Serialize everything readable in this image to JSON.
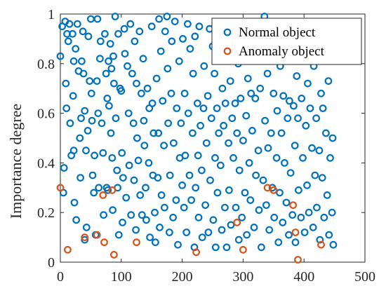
{
  "chart_data": {
    "type": "scatter",
    "title": "",
    "xlabel": "",
    "ylabel": "Importance degree",
    "xlim": [
      0,
      500
    ],
    "ylim": [
      0,
      1
    ],
    "xticks": [
      "0",
      "100",
      "200",
      "300",
      "400",
      "500"
    ],
    "yticks": [
      "0",
      "0.2",
      "0.4",
      "0.6",
      "0.8",
      "1"
    ],
    "grid": false,
    "legend_position": "top-right",
    "series": [
      {
        "name": "Normal object",
        "color": "#0072BD",
        "marker": "open-circle",
        "points": [
          [
            0,
            0.83
          ],
          [
            3,
            0.95
          ],
          [
            5,
            0.28
          ],
          [
            6,
            0.38
          ],
          [
            8,
            0.97
          ],
          [
            9,
            0.72
          ],
          [
            10,
            0.62
          ],
          [
            11,
            0.92
          ],
          [
            13,
            0.89
          ],
          [
            15,
            0.96
          ],
          [
            16,
            0.56
          ],
          [
            18,
            0.43
          ],
          [
            20,
            0.92
          ],
          [
            21,
            0.67
          ],
          [
            22,
            0.81
          ],
          [
            22,
            0.45
          ],
          [
            23,
            0.24
          ],
          [
            25,
            0.86
          ],
          [
            26,
            0.17
          ],
          [
            28,
            0.96
          ],
          [
            30,
            0.77
          ],
          [
            32,
            0.5
          ],
          [
            33,
            0.34
          ],
          [
            34,
            0.58
          ],
          [
            35,
            0.81
          ],
          [
            37,
            0.93
          ],
          [
            38,
            0.76
          ],
          [
            40,
            0.61
          ],
          [
            40,
            0.09
          ],
          [
            42,
            0.45
          ],
          [
            43,
            0.14
          ],
          [
            45,
            0.53
          ],
          [
            46,
            0.91
          ],
          [
            48,
            0.73
          ],
          [
            50,
            0.98
          ],
          [
            51,
            0.68
          ],
          [
            52,
            0.57
          ],
          [
            53,
            0.35
          ],
          [
            55,
            0.28
          ],
          [
            56,
            0.43
          ],
          [
            58,
            0.11
          ],
          [
            60,
            0.73
          ],
          [
            61,
            0.98
          ],
          [
            62,
            0.6
          ],
          [
            63,
            0.3
          ],
          [
            65,
            0.82
          ],
          [
            66,
            0.89
          ],
          [
            68,
            0.56
          ],
          [
            70,
            0.44
          ],
          [
            71,
            0.19
          ],
          [
            73,
            0.92
          ],
          [
            75,
            0.76
          ],
          [
            76,
            0.3
          ],
          [
            77,
            0.66
          ],
          [
            78,
            0.29
          ],
          [
            79,
            0.81
          ],
          [
            80,
            0.63
          ],
          [
            82,
            0.88
          ],
          [
            83,
            0.52
          ],
          [
            84,
            0.78
          ],
          [
            85,
            0.42
          ],
          [
            86,
            0.21
          ],
          [
            87,
            0.83
          ],
          [
            88,
            0.72
          ],
          [
            90,
            0.99
          ],
          [
            91,
            0.58
          ],
          [
            93,
            0.37
          ],
          [
            94,
            0.3
          ],
          [
            95,
            0.92
          ],
          [
            96,
            0.11
          ],
          [
            98,
            0.7
          ],
          [
            100,
            0.69
          ],
          [
            101,
            0.44
          ],
          [
            102,
            0.16
          ],
          [
            103,
            0.34
          ],
          [
            105,
            0.94
          ],
          [
            106,
            0.84
          ],
          [
            108,
            0.26
          ],
          [
            110,
            0.79
          ],
          [
            112,
            0.6
          ],
          [
            113,
            0.39
          ],
          [
            115,
            0.96
          ],
          [
            116,
            0.19
          ],
          [
            118,
            0.76
          ],
          [
            120,
            0.56
          ],
          [
            121,
            0.33
          ],
          [
            122,
            0.89
          ],
          [
            124,
            0.13
          ],
          [
            125,
            0.72
          ],
          [
            126,
            0.5
          ],
          [
            128,
            0.41
          ],
          [
            130,
            0.93
          ],
          [
            131,
            0.27
          ],
          [
            133,
            0.68
          ],
          [
            134,
            0.19
          ],
          [
            136,
            0.82
          ],
          [
            137,
            0.57
          ],
          [
            138,
            0.47
          ],
          [
            140,
            0.3
          ],
          [
            141,
            0.17
          ],
          [
            143,
            0.7
          ],
          [
            145,
            0.4
          ],
          [
            146,
            0.62
          ],
          [
            147,
            0.1
          ],
          [
            150,
            0.95
          ],
          [
            151,
            0.64
          ],
          [
            152,
            0.35
          ],
          [
            153,
            0.52
          ],
          [
            155,
            0.2
          ],
          [
            156,
            0.08
          ],
          [
            158,
            0.74
          ],
          [
            160,
            0.34
          ],
          [
            161,
            0.52
          ],
          [
            162,
            0.98
          ],
          [
            163,
            0.14
          ],
          [
            165,
            0.85
          ],
          [
            166,
            0.27
          ],
          [
            168,
            0.65
          ],
          [
            170,
            0.47
          ],
          [
            171,
            0.22
          ],
          [
            172,
            0.93
          ],
          [
            175,
            0.99
          ],
          [
            176,
            0.78
          ],
          [
            177,
            0.56
          ],
          [
            179,
            0.12
          ],
          [
            180,
            0.35
          ],
          [
            182,
            0.68
          ],
          [
            183,
            0.89
          ],
          [
            185,
            0.18
          ],
          [
            186,
            0.48
          ],
          [
            188,
            0.97
          ],
          [
            190,
            0.25
          ],
          [
            191,
            0.62
          ],
          [
            193,
            0.07
          ],
          [
            195,
            0.81
          ],
          [
            196,
            0.42
          ],
          [
            198,
            0.56
          ],
          [
            200,
            0.31
          ],
          [
            201,
            0.9
          ],
          [
            203,
            0.22
          ],
          [
            204,
            0.68
          ],
          [
            205,
            0.43
          ],
          [
            207,
            0.12
          ],
          [
            209,
            0.96
          ],
          [
            210,
            0.6
          ],
          [
            212,
            0.35
          ],
          [
            213,
            0.86
          ],
          [
            215,
            0.25
          ],
          [
            217,
            0.52
          ],
          [
            218,
            0.76
          ],
          [
            220,
            0.06
          ],
          [
            221,
            0.91
          ],
          [
            222,
            0.3
          ],
          [
            225,
            0.64
          ],
          [
            226,
            0.43
          ],
          [
            227,
            0.18
          ],
          [
            228,
            0.95
          ],
          [
            230,
            0.55
          ],
          [
            232,
            0.37
          ],
          [
            233,
            0.1
          ],
          [
            235,
            0.62
          ],
          [
            236,
            0.79
          ],
          [
            238,
            0.23
          ],
          [
            240,
            0.48
          ],
          [
            242,
            0.67
          ],
          [
            243,
            0.12
          ],
          [
            245,
            0.94
          ],
          [
            246,
            0.33
          ],
          [
            248,
            0.58
          ],
          [
            250,
            0.87
          ],
          [
            251,
            0.17
          ],
          [
            253,
            0.76
          ],
          [
            254,
            0.42
          ],
          [
            255,
            0.06
          ],
          [
            257,
            0.62
          ],
          [
            258,
            0.28
          ],
          [
            260,
            0.52
          ],
          [
            262,
            0.91
          ],
          [
            263,
            0.39
          ],
          [
            265,
            0.13
          ],
          [
            266,
            0.7
          ],
          [
            268,
            0.55
          ],
          [
            270,
            0.22
          ],
          [
            271,
            0.64
          ],
          [
            273,
            0.06
          ],
          [
            274,
            0.87
          ],
          [
            276,
            0.48
          ],
          [
            277,
            0.29
          ],
          [
            279,
            0.73
          ],
          [
            280,
            0.15
          ],
          [
            282,
            0.58
          ],
          [
            284,
            0.42
          ],
          [
            285,
            0.96
          ],
          [
            287,
            0.64
          ],
          [
            288,
            0.22
          ],
          [
            290,
            0.52
          ],
          [
            292,
            0.8
          ],
          [
            293,
            0.09
          ],
          [
            294,
            0.37
          ],
          [
            296,
            0.66
          ],
          [
            298,
            0.18
          ],
          [
            300,
            0.49
          ],
          [
            302,
            0.84
          ],
          [
            303,
            0.28
          ],
          [
            305,
            0.59
          ],
          [
            306,
            0.11
          ],
          [
            308,
            0.74
          ],
          [
            310,
            0.4
          ],
          [
            312,
            0.25
          ],
          [
            313,
            0.68
          ],
          [
            315,
            0.53
          ],
          [
            316,
            0.96
          ],
          [
            318,
            0.14
          ],
          [
            320,
            0.66
          ],
          [
            321,
            0.35
          ],
          [
            323,
            0.85
          ],
          [
            325,
            0.45
          ],
          [
            326,
            0.21
          ],
          [
            328,
            0.7
          ],
          [
            330,
            0.06
          ],
          [
            331,
            0.9
          ],
          [
            333,
            0.33
          ],
          [
            335,
            0.99
          ],
          [
            336,
            0.57
          ],
          [
            338,
            0.23
          ],
          [
            340,
            0.76
          ],
          [
            341,
            0.46
          ],
          [
            343,
            0.13
          ],
          [
            345,
            0.96
          ],
          [
            346,
            0.52
          ],
          [
            348,
            0.3
          ],
          [
            350,
            0.68
          ],
          [
            351,
            0.18
          ],
          [
            353,
            0.88
          ],
          [
            355,
            0.42
          ],
          [
            356,
            0.61
          ],
          [
            358,
            0.08
          ],
          [
            360,
            0.28
          ],
          [
            361,
            0.79
          ],
          [
            363,
            0.52
          ],
          [
            365,
            0.16
          ],
          [
            366,
            0.67
          ],
          [
            368,
            0.4
          ],
          [
            370,
            0.92
          ],
          [
            371,
            0.24
          ],
          [
            373,
            0.58
          ],
          [
            375,
            0.11
          ],
          [
            376,
            0.65
          ],
          [
            378,
            0.36
          ],
          [
            380,
            0.92
          ],
          [
            381,
            0.19
          ],
          [
            383,
            0.63
          ],
          [
            385,
            0.47
          ],
          [
            386,
            0.08
          ],
          [
            388,
            0.75
          ],
          [
            390,
            0.58
          ],
          [
            391,
            0.29
          ],
          [
            393,
            0.96
          ],
          [
            395,
            0.18
          ],
          [
            396,
            0.66
          ],
          [
            398,
            0.42
          ],
          [
            400,
            0.86
          ],
          [
            401,
            0.12
          ],
          [
            403,
            0.55
          ],
          [
            405,
            0.31
          ],
          [
            406,
            0.72
          ],
          [
            408,
            0.2
          ],
          [
            410,
            0.62
          ],
          [
            411,
            0.94
          ],
          [
            413,
            0.46
          ],
          [
            415,
            0.14
          ],
          [
            416,
            0.79
          ],
          [
            418,
            0.35
          ],
          [
            420,
            0.58
          ],
          [
            421,
            0.22
          ],
          [
            423,
            0.87
          ],
          [
            425,
            0.45
          ],
          [
            426,
            0.09
          ],
          [
            428,
            0.68
          ],
          [
            430,
            0.34
          ],
          [
            431,
            0.62
          ],
          [
            433,
            0.18
          ],
          [
            435,
            0.91
          ],
          [
            436,
            0.52
          ],
          [
            438,
            0.27
          ],
          [
            440,
            0.73
          ],
          [
            441,
            0.11
          ],
          [
            443,
            0.42
          ],
          [
            445,
            0.82
          ],
          [
            446,
            0.2
          ],
          [
            447,
            0.5
          ],
          [
            448,
            0.07
          ]
        ]
      },
      {
        "name": "Anomaly object",
        "color": "#D95319",
        "marker": "open-circle",
        "points": [
          [
            0,
            0.3
          ],
          [
            12,
            0.05
          ],
          [
            40,
            0.1
          ],
          [
            60,
            0.11
          ],
          [
            70,
            0.27
          ],
          [
            72,
            0.08
          ],
          [
            85,
            0.29
          ],
          [
            88,
            0.03
          ],
          [
            125,
            0.08
          ],
          [
            223,
            0.04
          ],
          [
            290,
            0.16
          ],
          [
            300,
            0.05
          ],
          [
            340,
            0.3
          ],
          [
            350,
            0.29
          ],
          [
            382,
            0.23
          ],
          [
            386,
            0.12
          ],
          [
            390,
            0.01
          ],
          [
            428,
            0.07
          ]
        ]
      }
    ]
  }
}
